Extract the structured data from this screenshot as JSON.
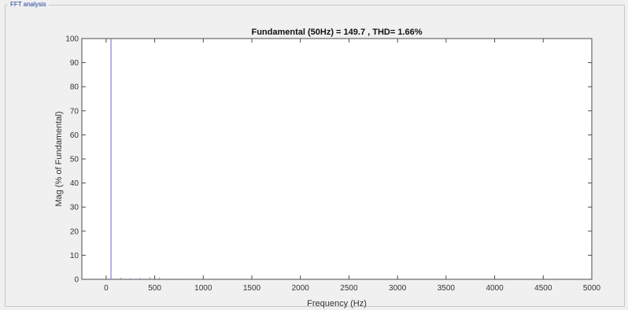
{
  "panel": {
    "title": "FFT analysis"
  },
  "colors": {
    "bar": "#7f7fcf",
    "axis": "#4d4d4d",
    "plot_bg": "#ffffff",
    "panel_bg": "#f0f0f0"
  },
  "chart_data": {
    "type": "bar",
    "title": "Fundamental (50Hz) = 149.7 , THD= 1.66%",
    "xlabel": "Frequency (Hz)",
    "ylabel": "Mag (% of Fundamental)",
    "xlim": [
      -250,
      5000
    ],
    "ylim": [
      0,
      100
    ],
    "xticks": [
      "0",
      "500",
      "1000",
      "1500",
      "2000",
      "2500",
      "3000",
      "3500",
      "4000",
      "4500",
      "5000"
    ],
    "yticks": [
      "0",
      "10",
      "20",
      "30",
      "40",
      "50",
      "60",
      "70",
      "80",
      "90",
      "100"
    ],
    "grid": false,
    "series": [
      {
        "x": [
          50,
          150,
          250,
          350,
          450,
          550,
          650,
          750
        ],
        "values": [
          100,
          0.6,
          0.4,
          0.5,
          0.8,
          0.7,
          0.3,
          0.3
        ]
      }
    ]
  }
}
